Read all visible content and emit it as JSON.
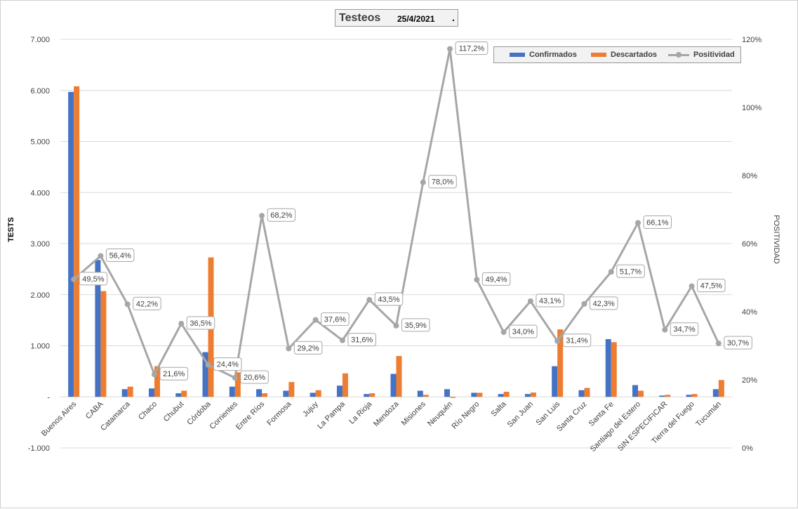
{
  "header": {
    "title": "Testeos",
    "date": "25/4/2021",
    "mark": "."
  },
  "chart_data": {
    "type": "bar",
    "title": "Testeos",
    "subtitle": "25/4/2021",
    "categories": [
      "Buenos Aires",
      "CABA",
      "Catamarca",
      "Chaco",
      "Chubut",
      "Córdoba",
      "Corrientes",
      "Entre Ríos",
      "Formosa",
      "Jujuy",
      "La Pampa",
      "La Rioja",
      "Mendoza",
      "Misiones",
      "Neuquén",
      "Río Negro",
      "Salta",
      "San Juan",
      "San Luis",
      "Santa Cruz",
      "Santa Fe",
      "Santiago del Estero",
      "SIN ESPECIFICAR",
      "Tierra del Fuego",
      "Tucumán"
    ],
    "series": [
      {
        "name": "Confirmados",
        "axis": "left",
        "color": "#4472c4",
        "values": [
          5970,
          2680,
          150,
          165,
          70,
          875,
          200,
          150,
          120,
          80,
          220,
          55,
          450,
          120,
          150,
          80,
          55,
          55,
          600,
          130,
          1130,
          230,
          25,
          40,
          150
        ]
      },
      {
        "name": "Descartados",
        "axis": "left",
        "color": "#ed7d31",
        "values": [
          6080,
          2070,
          200,
          600,
          120,
          2730,
          480,
          70,
          290,
          130,
          460,
          70,
          800,
          40,
          -20,
          80,
          100,
          85,
          1320,
          175,
          1070,
          120,
          40,
          55,
          330
        ]
      },
      {
        "name": "Positividad",
        "axis": "right",
        "type": "line",
        "color": "#a6a6a6",
        "values": [
          49.5,
          56.4,
          42.2,
          21.6,
          36.5,
          24.4,
          20.6,
          68.2,
          29.2,
          37.6,
          31.6,
          43.5,
          35.9,
          78.0,
          117.2,
          49.4,
          34.0,
          43.1,
          31.4,
          42.3,
          51.7,
          66.1,
          34.7,
          47.5,
          30.7
        ],
        "labels": [
          "49,5%",
          "56,4%",
          "42,2%",
          "21,6%",
          "36,5%",
          "24,4%",
          "20,6%",
          "68,2%",
          "29,2%",
          "37,6%",
          "31,6%",
          "43,5%",
          "35,9%",
          "78,0%",
          "117,2%",
          "49,4%",
          "34,0%",
          "43,1%",
          "31,4%",
          "42,3%",
          "51,7%",
          "66,1%",
          "34,7%",
          "47,5%",
          "30,7%"
        ]
      }
    ],
    "ylabel": "TESTS",
    "y2label": "POSITIVIDAD",
    "ylim": [
      -1000,
      7000
    ],
    "y_ticks": [
      -1000,
      0,
      1000,
      2000,
      3000,
      4000,
      5000,
      6000,
      7000
    ],
    "y_tick_labels": [
      "-1.000",
      "-",
      "1.000",
      "2.000",
      "3.000",
      "4.000",
      "5.000",
      "6.000",
      "7.000"
    ],
    "y2lim": [
      0,
      120
    ],
    "y2_ticks": [
      0,
      20,
      40,
      60,
      80,
      100,
      120
    ],
    "y2_tick_labels": [
      "0%",
      "20%",
      "40%",
      "60%",
      "80%",
      "100%",
      "120%"
    ],
    "grid": true,
    "legend": "top-right"
  }
}
